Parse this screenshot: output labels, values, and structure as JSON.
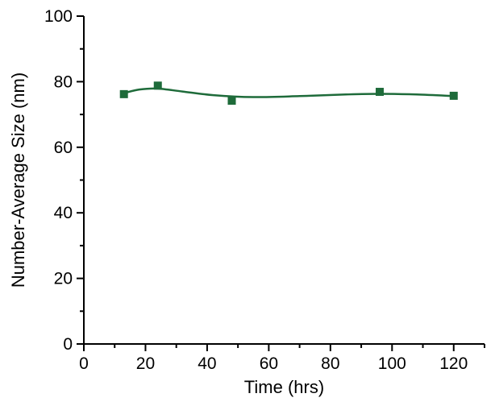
{
  "chart_data": {
    "type": "scatter",
    "title": "",
    "xlabel": "Time (hrs)",
    "ylabel": "Number-Average Size (nm)",
    "xlim": [
      0,
      130
    ],
    "ylim": [
      0,
      100
    ],
    "x_ticks": [
      0,
      20,
      40,
      60,
      80,
      100,
      120
    ],
    "y_ticks": [
      0,
      20,
      40,
      60,
      80,
      100
    ],
    "grid": false,
    "legend": "none",
    "color": "#1e6b3a",
    "series": [
      {
        "marker": "square",
        "points": [
          {
            "x": 13,
            "y": 76.2
          },
          {
            "x": 24,
            "y": 78.8
          },
          {
            "x": 48,
            "y": 74.2
          },
          {
            "x": 96,
            "y": 76.9
          },
          {
            "x": 120,
            "y": 75.7
          }
        ],
        "fit_curve": [
          {
            "x": 13,
            "y": 76.5
          },
          {
            "x": 18,
            "y": 77.6
          },
          {
            "x": 24,
            "y": 77.9
          },
          {
            "x": 32,
            "y": 77.0
          },
          {
            "x": 42,
            "y": 75.9
          },
          {
            "x": 55,
            "y": 75.3
          },
          {
            "x": 70,
            "y": 75.6
          },
          {
            "x": 85,
            "y": 76.1
          },
          {
            "x": 96,
            "y": 76.3
          },
          {
            "x": 108,
            "y": 76.1
          },
          {
            "x": 120,
            "y": 75.6
          }
        ]
      }
    ]
  }
}
